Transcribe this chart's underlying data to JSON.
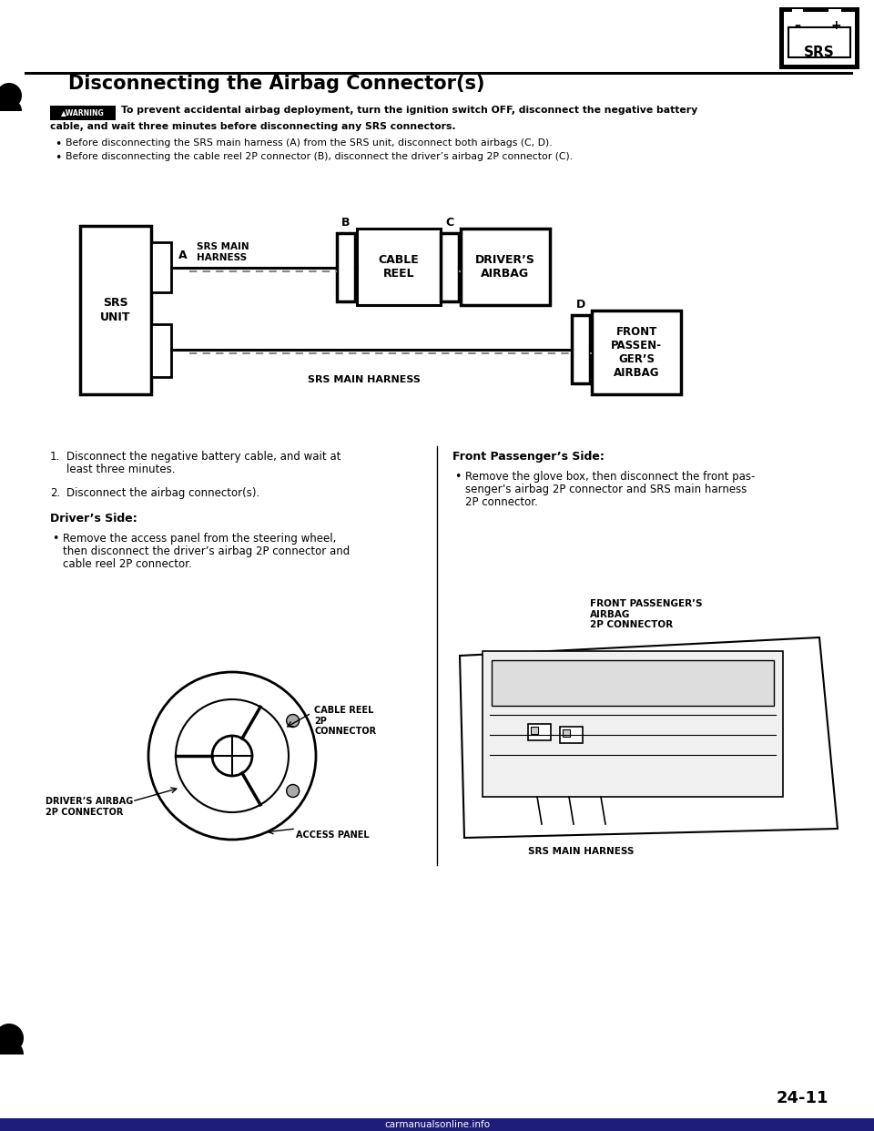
{
  "bg_color": "#ffffff",
  "title": "Disconnecting the Airbag Connector(s)",
  "warning_label": "▲WARNING",
  "warning_text_line1": "To prevent accidental airbag deployment, turn the ignition switch OFF, disconnect the negative battery",
  "warning_text_line2": "cable, and wait three minutes before disconnecting any SRS connectors.",
  "bullet1": "Before disconnecting the SRS main harness (A) from the SRS unit, disconnect both airbags (C, D).",
  "bullet2": "Before disconnecting the cable reel 2P connector (B), disconnect the driver’s airbag 2P connector (C).",
  "step1a": "Disconnect the negative battery cable, and wait at",
  "step1b": "least three minutes.",
  "step2": "Disconnect the airbag connector(s).",
  "drivers_side_title": "Driver’s Side:",
  "drivers_side_bullet": "Remove the access panel from the steering wheel,",
  "drivers_side_bullet2": "then disconnect the driver’s airbag 2P connector and",
  "drivers_side_bullet3": "cable reel 2P connector.",
  "front_pass_title": "Front Passenger’s Side:",
  "front_pass_bullet1": "Remove the glove box, then disconnect the front pas-",
  "front_pass_bullet2": "senger’s airbag 2P connector and SRS main harness",
  "front_pass_bullet3": "2P connector.",
  "page_num": "24-11",
  "srs_label": "SRS",
  "diag_srs_unit": "SRS\nUNIT",
  "diag_A": "A",
  "diag_B": "B",
  "diag_C": "C",
  "diag_D": "D",
  "diag_srs_main_harness": "SRS MAIN\nHARNESS",
  "diag_cable_reel": "CABLE\nREEL",
  "diag_drivers_airbag": "DRIVER’S\nAIRBAG",
  "diag_front_passenger": "FRONT\nPASSEN-\nGER’S\nAIRBAG",
  "diag_srs_main_harness_bottom": "SRS MAIN HARNESS",
  "label_cable_reel_2p": "CABLE REEL\n2P\nCONNECTOR",
  "label_drivers_airbag_2p": "DRIVER’S AIRBAG\n2P CONNECTOR",
  "label_access_panel": "ACCESS PANEL",
  "label_front_pass_2p": "FRONT PASSENGER’S\nAIRBAG\n2P CONNECTOR",
  "label_srs_main": "SRS MAIN HARNESS",
  "watermark": "carmanualsonline.info"
}
